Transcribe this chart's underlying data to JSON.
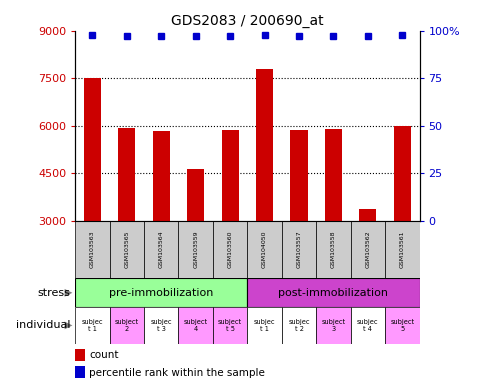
{
  "title": "GDS2083 / 200690_at",
  "samples": [
    "GSM103563",
    "GSM103565",
    "GSM103564",
    "GSM103559",
    "GSM103560",
    "GSM104050",
    "GSM103557",
    "GSM103558",
    "GSM103562",
    "GSM103561"
  ],
  "counts": [
    7520,
    5920,
    5820,
    4620,
    5880,
    7780,
    5870,
    5890,
    3370,
    5980
  ],
  "percentile_ranks": [
    98,
    97,
    97,
    97,
    97,
    98,
    97,
    97,
    97,
    98
  ],
  "ylim_left": [
    3000,
    9000
  ],
  "ylim_right": [
    0,
    100
  ],
  "yticks_left": [
    3000,
    4500,
    6000,
    7500,
    9000
  ],
  "yticks_right": [
    0,
    25,
    50,
    75,
    100
  ],
  "bar_color": "#cc0000",
  "dot_color": "#0000cc",
  "stress_groups": [
    {
      "label": "pre-immobilization",
      "indices": [
        0,
        1,
        2,
        3,
        4
      ],
      "color": "#99ff99"
    },
    {
      "label": "post-immobilization",
      "indices": [
        5,
        6,
        7,
        8,
        9
      ],
      "color": "#cc44cc"
    }
  ],
  "individual_labels_line1": [
    "subjec",
    "subject",
    "subjec",
    "subject",
    "subject",
    "subjec",
    "subjec",
    "subject",
    "subjec",
    "subject"
  ],
  "individual_labels_line2": [
    "t 1",
    "2",
    "t 3",
    "4",
    "t 5",
    "t 1",
    "t 2",
    "3",
    "t 4",
    "5"
  ],
  "individual_colors": [
    "#ffffff",
    "#ff99ff",
    "#ffffff",
    "#ff99ff",
    "#ff99ff",
    "#ffffff",
    "#ffffff",
    "#ff99ff",
    "#ffffff",
    "#ff99ff"
  ],
  "legend_count_color": "#cc0000",
  "legend_dot_color": "#0000cc",
  "background_color": "#ffffff",
  "grid_color": "#555555",
  "sample_label_bg": "#cccccc"
}
